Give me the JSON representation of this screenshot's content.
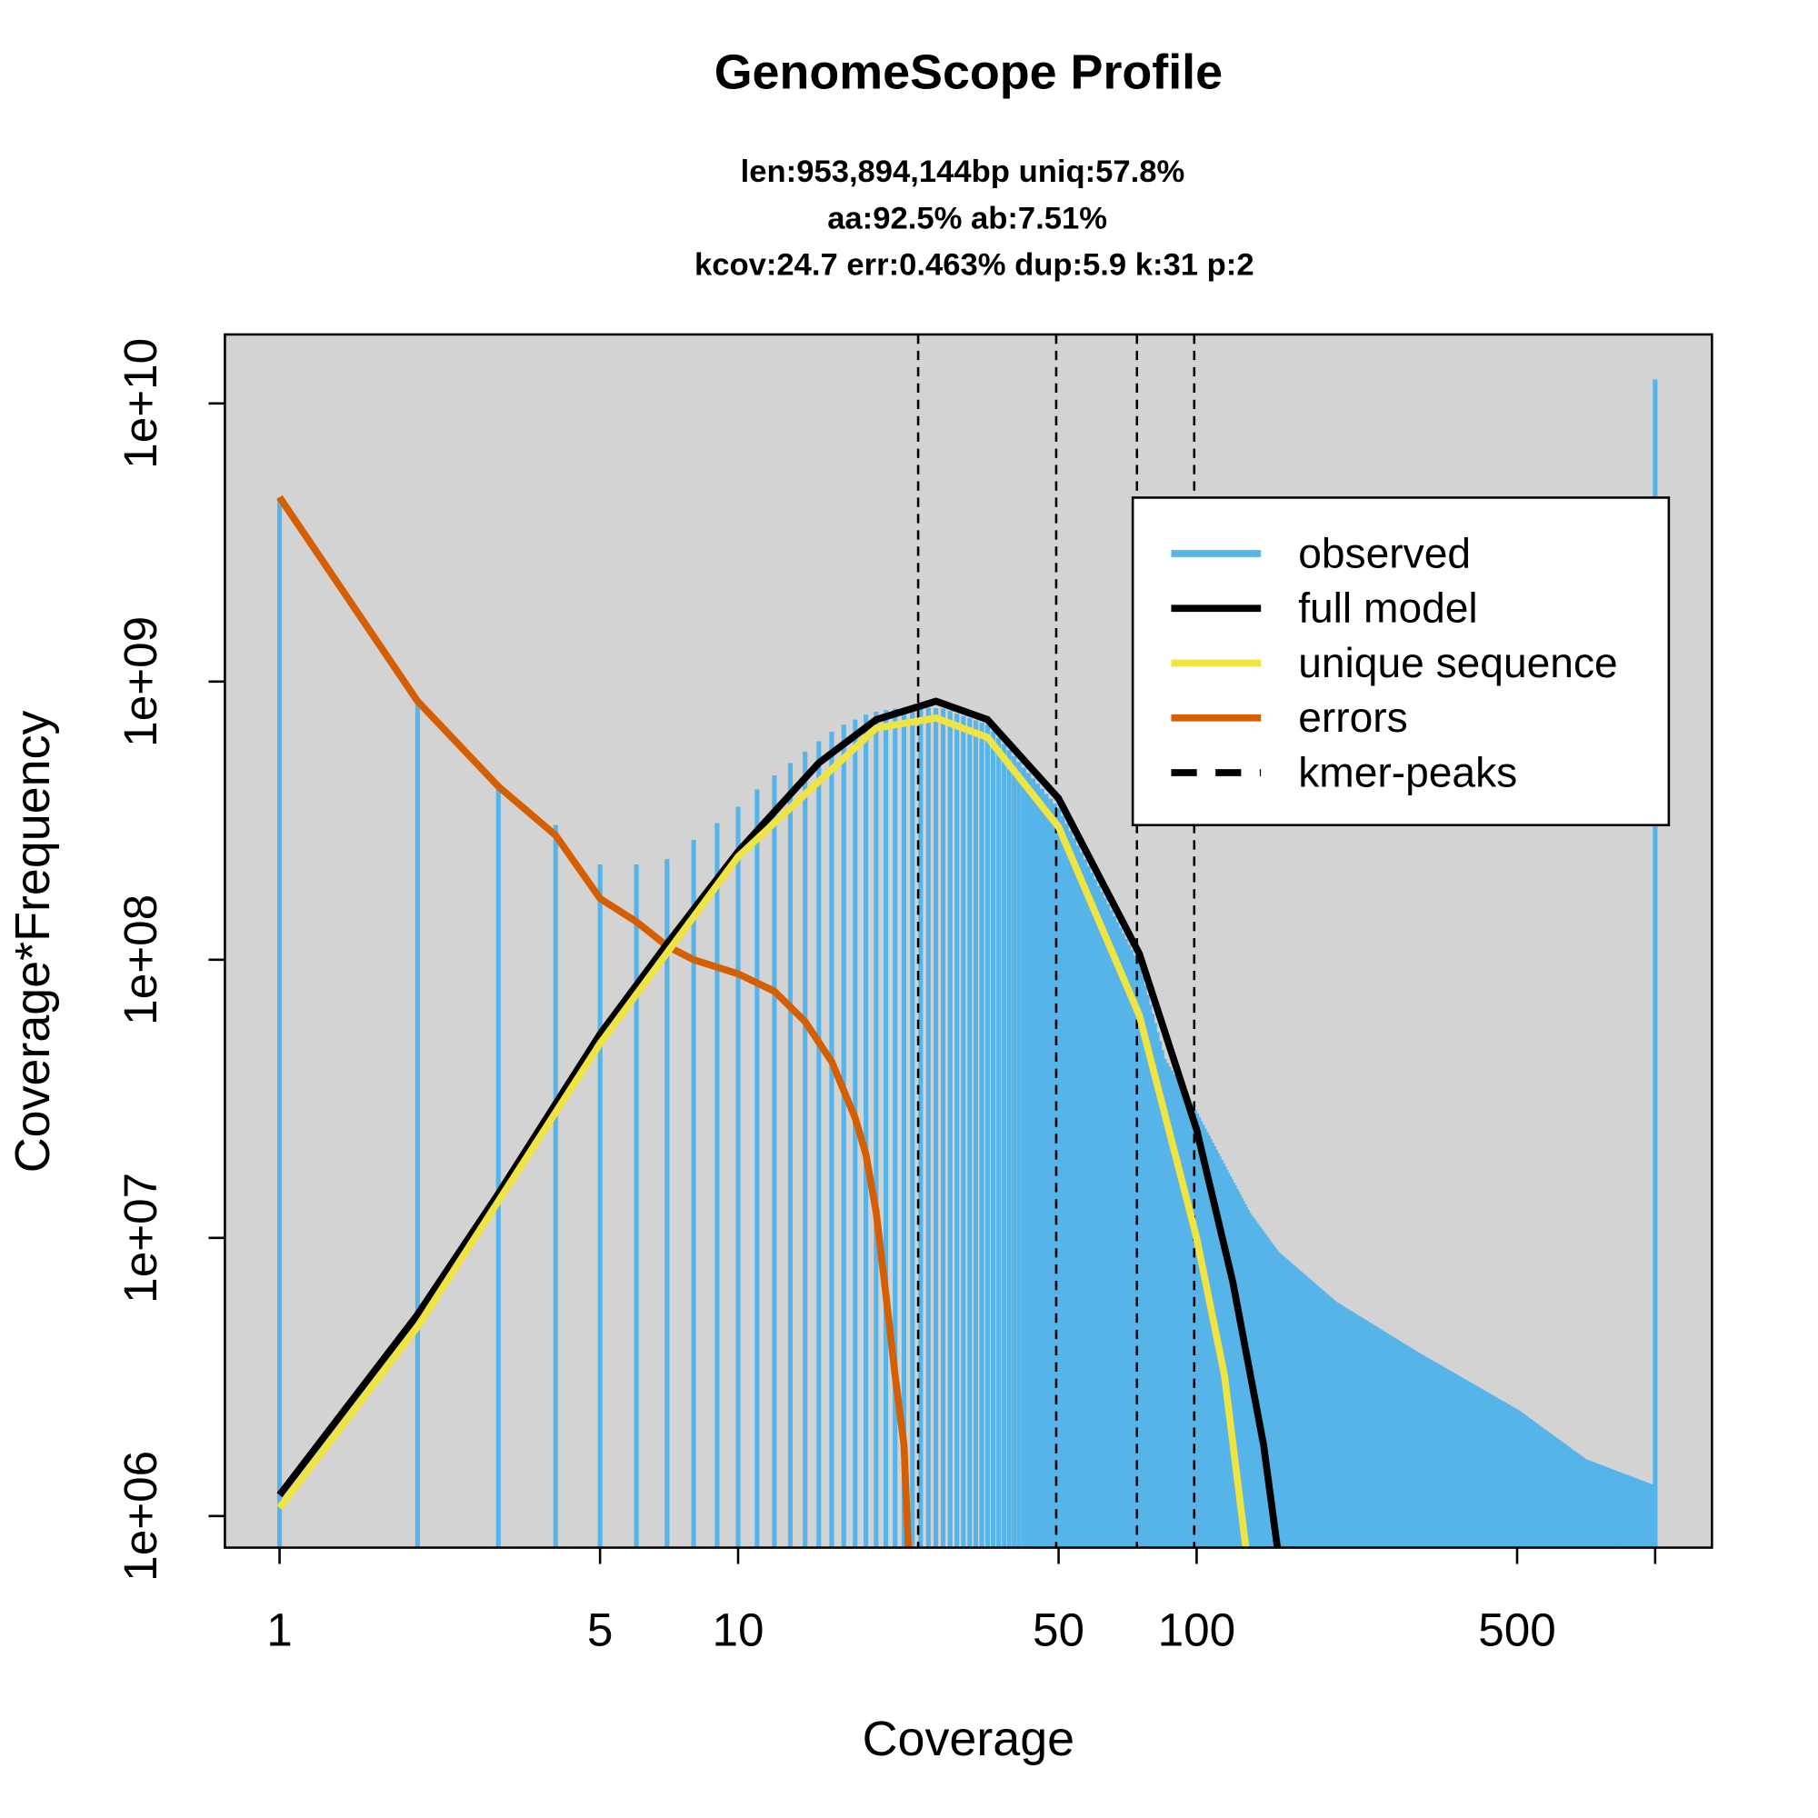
{
  "chart_data": {
    "type": "line",
    "title": "GenomeScope Profile",
    "subtitle_lines": [
      "len:953,894,144bp uniq:57.8%",
      "aa:92.5% ab:7.51%",
      "kcov:24.7 err:0.463%  dup:5.9  k:31 p:2"
    ],
    "xlabel": "Coverage",
    "ylabel": "Coverage*Frequency",
    "x_scale": "log",
    "y_scale": "log",
    "xlim": [
      0.76,
      1330
    ],
    "ylim": [
      770000,
      17700000000
    ],
    "x_ticks": [
      1,
      5,
      10,
      50,
      100,
      500,
      1000
    ],
    "x_tick_labels": [
      "1",
      "5",
      "10",
      "50",
      "100",
      "500",
      ""
    ],
    "y_ticks": [
      1000000,
      10000000,
      100000000,
      1000000000,
      10000000000
    ],
    "y_tick_labels": [
      "1e+06",
      "1e+07",
      "1e+08",
      "1e+09",
      "1e+10"
    ],
    "background": "#D3D3D3",
    "legend_position": "top-right",
    "legend": [
      {
        "label": "observed",
        "color": "#56B4E9",
        "style": "solid"
      },
      {
        "label": "full model",
        "color": "#000000",
        "style": "solid"
      },
      {
        "label": "unique sequence",
        "color": "#F0E442",
        "style": "solid"
      },
      {
        "label": "errors",
        "color": "#D55E00",
        "style": "solid"
      },
      {
        "label": "kmer-peaks",
        "color": "#000000",
        "style": "dashed"
      }
    ],
    "kmer_peaks": [
      24.7,
      49.4,
      74.1,
      98.8
    ],
    "observed": {
      "style": "histogram bars at each integer coverage",
      "points": [
        [
          1,
          4600000000.0
        ],
        [
          2,
          840000000.0
        ],
        [
          3,
          410000000.0
        ],
        [
          4,
          305000000.0
        ],
        [
          5,
          220000000.0
        ],
        [
          6,
          220000000.0
        ],
        [
          7,
          230000000.0
        ],
        [
          8,
          270000000.0
        ],
        [
          9,
          310000000.0
        ],
        [
          10,
          355000000.0
        ],
        [
          11,
          410000000.0
        ],
        [
          12,
          460000000.0
        ],
        [
          13,
          510000000.0
        ],
        [
          14,
          560000000.0
        ],
        [
          15,
          610000000.0
        ],
        [
          16,
          660000000.0
        ],
        [
          17,
          700000000.0
        ],
        [
          18,
          730000000.0
        ],
        [
          19,
          760000000.0
        ],
        [
          20,
          780000000.0
        ],
        [
          22,
          800000000.0
        ],
        [
          25,
          810000000.0
        ],
        [
          28,
          800000000.0
        ],
        [
          35,
          700000000.0
        ],
        [
          50,
          350000000.0
        ],
        [
          75,
          95000000.0
        ],
        [
          85,
          44000000.0
        ],
        [
          100,
          28000000.0
        ],
        [
          130,
          12300000.0
        ],
        [
          150,
          8900000.0
        ],
        [
          200,
          5900000.0
        ],
        [
          300,
          3900000.0
        ],
        [
          500,
          2400000.0
        ],
        [
          700,
          1600000.0
        ],
        [
          999,
          1280000.0
        ],
        [
          1000,
          12200000000.0
        ]
      ]
    },
    "full_model": [
      [
        1,
        1190000.0
      ],
      [
        2,
        5300000.0
      ],
      [
        3,
        14400000.0
      ],
      [
        5,
        54000000.0
      ],
      [
        7,
        114000000.0
      ],
      [
        10,
        245000000.0
      ],
      [
        15,
        510000000.0
      ],
      [
        20,
        730000000.0
      ],
      [
        27,
        850000000.0
      ],
      [
        35,
        730000000.0
      ],
      [
        50,
        380000000.0
      ],
      [
        75,
        105000000.0
      ],
      [
        100,
        24500000.0
      ],
      [
        120,
        6900000.0
      ],
      [
        140,
        1800000.0
      ],
      [
        150,
        770000.0
      ]
    ],
    "unique_sequence": [
      [
        1,
        1070000.0
      ],
      [
        2,
        4800000.0
      ],
      [
        5,
        50000000.0
      ],
      [
        10,
        235000000.0
      ],
      [
        20,
        680000000.0
      ],
      [
        27,
        740000000.0
      ],
      [
        35,
        630000000.0
      ],
      [
        50,
        300000000.0
      ],
      [
        75,
        63000000.0
      ],
      [
        100,
        10000000.0
      ],
      [
        115,
        3200000.0
      ],
      [
        128,
        770000.0
      ]
    ],
    "errors": [
      [
        1,
        4600000000.0
      ],
      [
        2,
        850000000.0
      ],
      [
        3,
        420000000.0
      ],
      [
        4,
        280000000.0
      ],
      [
        5,
        166000000.0
      ],
      [
        6,
        137000000.0
      ],
      [
        7,
        112000000.0
      ],
      [
        8,
        100000000.0
      ],
      [
        10,
        89000000.0
      ],
      [
        12,
        77000000.0
      ],
      [
        14,
        60000000.0
      ],
      [
        16,
        43000000.0
      ],
      [
        18,
        27000000.0
      ],
      [
        19,
        20000000.0
      ],
      [
        20,
        12400000.0
      ],
      [
        21,
        6300000.0
      ],
      [
        22,
        3200000.0
      ],
      [
        23,
        1800000.0
      ],
      [
        23.5,
        770000.0
      ]
    ]
  }
}
